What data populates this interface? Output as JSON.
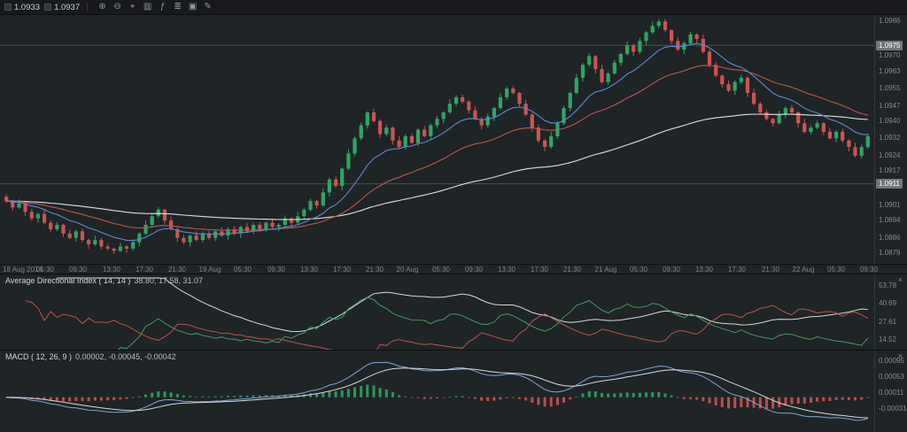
{
  "toolbar": {
    "bid": "1.0933",
    "ask": "1.0937",
    "icons": [
      {
        "name": "zoom-in-icon",
        "glyph": "⊕"
      },
      {
        "name": "zoom-out-icon",
        "glyph": "⊖"
      },
      {
        "name": "crosshair-icon",
        "glyph": "⌖"
      },
      {
        "name": "chart-mode-icon",
        "glyph": "▥"
      },
      {
        "name": "indicators-icon",
        "glyph": "ƒ"
      },
      {
        "name": "timeframe-icon",
        "glyph": "≣"
      },
      {
        "name": "templates-icon",
        "glyph": "▣"
      },
      {
        "name": "draw-tools-icon",
        "glyph": "✎"
      }
    ]
  },
  "colors": {
    "candle_up": "#2fa565",
    "candle_down": "#cf5351",
    "level_line": "#4b5055",
    "badge_bg": "#71767c",
    "adx": "#d8dbde",
    "plus_di": "#3f9e5f",
    "minus_di": "#c0544c",
    "macd_line": "#7ea6d8",
    "signal_line": "#d8dbde",
    "hist_up": "#2fa565",
    "hist_down": "#cf5351"
  },
  "chart_data": [
    {
      "id": "price",
      "type": "candlestick",
      "ylim": [
        1.0874,
        1.0989
      ],
      "y_ticks": [
        1.0986,
        1.097,
        1.0963,
        1.0955,
        1.0947,
        1.094,
        1.0932,
        1.0924,
        1.0917,
        1.0901,
        1.0894,
        1.0886,
        1.0879
      ],
      "level_lines": [
        1.0975,
        1.0911
      ],
      "x_labels": [
        "18 Aug 2014",
        "05:30",
        "09:30",
        "13:30",
        "17:30",
        "21:30",
        "19 Aug",
        "05:30",
        "09:30",
        "13:30",
        "17:30",
        "21:30",
        "20 Aug",
        "05:30",
        "09:30",
        "13:30",
        "17:30",
        "21:30",
        "21 Aug",
        "05:30",
        "09:30",
        "13:30",
        "17:30",
        "21:30",
        "22 Aug",
        "05:30",
        "09:30"
      ],
      "first_open": 1.0905,
      "closes": [
        1.0903,
        1.09,
        1.0902,
        1.0898,
        1.0895,
        1.0897,
        1.0893,
        1.089,
        1.0892,
        1.0888,
        1.0886,
        1.0889,
        1.0885,
        1.0883,
        1.0885,
        1.0882,
        1.0881,
        1.088,
        1.0882,
        1.0881,
        1.0884,
        1.0888,
        1.0892,
        1.0896,
        1.0899,
        1.0894,
        1.089,
        1.0886,
        1.0884,
        1.0887,
        1.0885,
        1.0888,
        1.0886,
        1.0889,
        1.0887,
        1.089,
        1.0888,
        1.0891,
        1.0889,
        1.0892,
        1.089,
        1.0893,
        1.0891,
        1.0892,
        1.0895,
        1.0893,
        1.0896,
        1.0899,
        1.0903,
        1.0901,
        1.0907,
        1.0913,
        1.091,
        1.0918,
        1.0925,
        1.0932,
        1.0938,
        1.0944,
        1.094,
        1.0934,
        1.0937,
        1.0931,
        1.0928,
        1.0933,
        1.093,
        1.0936,
        1.0933,
        1.0938,
        1.0941,
        1.0944,
        1.0948,
        1.0951,
        1.0949,
        1.0945,
        1.0941,
        1.0938,
        1.0942,
        1.0946,
        1.0951,
        1.0955,
        1.0953,
        1.0948,
        1.0943,
        1.0937,
        1.0931,
        1.0928,
        1.0933,
        1.0939,
        1.0946,
        1.0953,
        1.096,
        1.0966,
        1.097,
        1.0964,
        1.0958,
        1.0962,
        1.0967,
        1.0971,
        1.0975,
        1.0972,
        1.0977,
        1.0981,
        1.0984,
        1.0986,
        1.0982,
        1.0977,
        1.0973,
        1.0976,
        1.098,
        1.0978,
        1.0972,
        1.0966,
        1.0961,
        1.0957,
        1.0954,
        1.0958,
        1.096,
        1.0953,
        1.0948,
        1.0944,
        1.0941,
        1.0939,
        1.0943,
        1.0946,
        1.0944,
        1.0939,
        1.0935,
        1.0937,
        1.0939,
        1.0935,
        1.0932,
        1.0935,
        1.0931,
        1.0928,
        1.0924,
        1.0928,
        1.0933
      ],
      "overlays": [
        {
          "name": "ma-slow-line",
          "period": 90,
          "color": "#dde0e3"
        },
        {
          "name": "ma-medium-line",
          "period": 30,
          "color": "#c2564e"
        },
        {
          "name": "ma-fast-line",
          "period": 12,
          "color": "#5d8bd3"
        }
      ]
    },
    {
      "id": "adx",
      "type": "line",
      "title": "Average Directional Index ( 14, 14 )",
      "values_text": "38.80, 17.58, 31.07",
      "period": 14,
      "series_names": [
        "ADX",
        "+DI",
        "-DI"
      ],
      "y_ticks": [
        53.78,
        40.69,
        27.61,
        14.52
      ],
      "close_glyph": "×"
    },
    {
      "id": "macd",
      "type": "macd",
      "title": "MACD ( 12, 26, 9 )",
      "values_text": "0.00002, -0.00045, -0.00042",
      "params": [
        12,
        26,
        9
      ],
      "y_ticks": [
        0.00095,
        0.00053,
        0.00011,
        -0.00031
      ],
      "close_glyph": "×"
    }
  ]
}
